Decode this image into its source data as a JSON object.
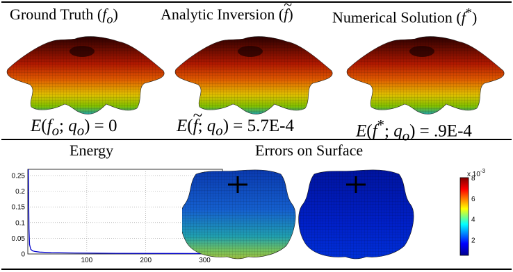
{
  "columns": [
    {
      "title": "Ground Truth",
      "symbol": "f",
      "sub": "o",
      "sup": "",
      "tilde": false
    },
    {
      "title": "Analytic Inversion",
      "symbol": "f",
      "sub": "",
      "sup": "",
      "tilde": true
    },
    {
      "title": "Numerical Solution",
      "symbol": "f",
      "sub": "",
      "sup": "*",
      "tilde": false
    }
  ],
  "energy_values": [
    "0",
    "5.7E-4",
    ".9E-4"
  ],
  "energy_title": "Energy",
  "errors_title": "Errors on Surface",
  "colorbar": {
    "exponent_label": "x 10",
    "exponent": "-3",
    "ticks": [
      "8",
      "6",
      "4",
      "2"
    ],
    "colors": [
      "#00008f",
      "#0000ff",
      "#00ffff",
      "#ffff00",
      "#ff0000",
      "#800000"
    ]
  },
  "chart_data": {
    "type": "line",
    "title": "Energy",
    "xlim": [
      0,
      330
    ],
    "ylim": [
      0,
      0.27
    ],
    "xticks": [
      100,
      200,
      300
    ],
    "yticks": [
      0,
      0.05,
      0.1,
      0.15,
      0.2,
      0.25
    ],
    "ytick_labels": [
      "0",
      "0.05",
      "0.1",
      "0.15",
      "0.2",
      "0.25"
    ],
    "grid": true,
    "series": [
      {
        "color": "#0000cc",
        "x": [
          1,
          2,
          3,
          5,
          8,
          12,
          20,
          40,
          80,
          150,
          250,
          325
        ],
        "y": [
          0.27,
          0.08,
          0.03,
          0.015,
          0.01,
          0.008,
          0.006,
          0.004,
          0.003,
          0.002,
          0.0015,
          0.001
        ]
      }
    ]
  }
}
